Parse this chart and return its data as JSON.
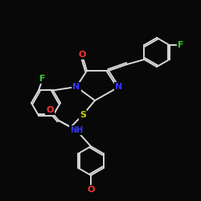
{
  "bg_color": "#080808",
  "bond_color": "#d8d8d8",
  "atom_colors": {
    "O": "#ff3333",
    "N": "#3333ff",
    "S": "#cccc00",
    "F": "#33cc33",
    "C": "#d8d8d8"
  }
}
